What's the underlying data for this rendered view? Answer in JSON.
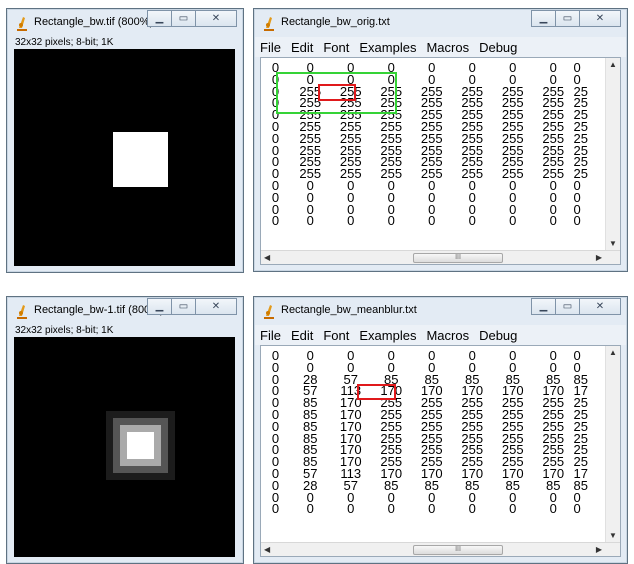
{
  "windows": {
    "img1": {
      "title": "Rectangle_bw.tif (800%)",
      "info": "32x32 pixels; 8-bit; 1K"
    },
    "txt1": {
      "title": "Rectangle_bw_orig.txt",
      "menu": [
        "File",
        "Edit",
        "Font",
        "Examples",
        "Macros",
        "Debug"
      ],
      "rows": [
        [
          "0",
          "0",
          "0",
          "0",
          "0",
          "0",
          "0",
          "0"
        ],
        [
          "0",
          "0",
          "0",
          "0",
          "0",
          "0",
          "0",
          "0"
        ],
        [
          "0",
          "255",
          "255",
          "255",
          "255",
          "255",
          "255",
          "255"
        ],
        [
          "0",
          "255",
          "255",
          "255",
          "255",
          "255",
          "255",
          "255"
        ],
        [
          "0",
          "255",
          "255",
          "255",
          "255",
          "255",
          "255",
          "255"
        ],
        [
          "0",
          "255",
          "255",
          "255",
          "255",
          "255",
          "255",
          "255"
        ],
        [
          "0",
          "255",
          "255",
          "255",
          "255",
          "255",
          "255",
          "255"
        ],
        [
          "0",
          "255",
          "255",
          "255",
          "255",
          "255",
          "255",
          "255"
        ],
        [
          "0",
          "255",
          "255",
          "255",
          "255",
          "255",
          "255",
          "255"
        ],
        [
          "0",
          "255",
          "255",
          "255",
          "255",
          "255",
          "255",
          "255"
        ],
        [
          "0",
          "0",
          "0",
          "0",
          "0",
          "0",
          "0",
          "0"
        ],
        [
          "0",
          "0",
          "0",
          "0",
          "0",
          "0",
          "0",
          "0"
        ],
        [
          "0",
          "0",
          "0",
          "0",
          "0",
          "0",
          "0",
          "0"
        ],
        [
          "0",
          "0",
          "0",
          "0",
          "0",
          "0",
          "0",
          "0"
        ]
      ],
      "partial_col": [
        "0",
        "0",
        "25",
        "25",
        "25",
        "25",
        "25",
        "25",
        "25",
        "25",
        "0",
        "0",
        "0",
        "0"
      ],
      "hscroll_grip": "III"
    },
    "img2": {
      "title": "Rectangle_bw-1.tif (800%)",
      "info": "32x32 pixels; 8-bit; 1K"
    },
    "txt2": {
      "title": "Rectangle_bw_meanblur.txt",
      "menu": [
        "File",
        "Edit",
        "Font",
        "Examples",
        "Macros",
        "Debug"
      ],
      "rows": [
        [
          "0",
          "0",
          "0",
          "0",
          "0",
          "0",
          "0",
          "0"
        ],
        [
          "0",
          "0",
          "0",
          "0",
          "0",
          "0",
          "0",
          "0"
        ],
        [
          "0",
          "28",
          "57",
          "85",
          "85",
          "85",
          "85",
          "85"
        ],
        [
          "0",
          "57",
          "113",
          "170",
          "170",
          "170",
          "170",
          "170"
        ],
        [
          "0",
          "85",
          "170",
          "255",
          "255",
          "255",
          "255",
          "255"
        ],
        [
          "0",
          "85",
          "170",
          "255",
          "255",
          "255",
          "255",
          "255"
        ],
        [
          "0",
          "85",
          "170",
          "255",
          "255",
          "255",
          "255",
          "255"
        ],
        [
          "0",
          "85",
          "170",
          "255",
          "255",
          "255",
          "255",
          "255"
        ],
        [
          "0",
          "85",
          "170",
          "255",
          "255",
          "255",
          "255",
          "255"
        ],
        [
          "0",
          "85",
          "170",
          "255",
          "255",
          "255",
          "255",
          "255"
        ],
        [
          "0",
          "57",
          "113",
          "170",
          "170",
          "170",
          "170",
          "170"
        ],
        [
          "0",
          "28",
          "57",
          "85",
          "85",
          "85",
          "85",
          "85"
        ],
        [
          "0",
          "0",
          "0",
          "0",
          "0",
          "0",
          "0",
          "0"
        ],
        [
          "0",
          "0",
          "0",
          "0",
          "0",
          "0",
          "0",
          "0"
        ]
      ],
      "partial_col": [
        "0",
        "0",
        "85",
        "17",
        "25",
        "25",
        "25",
        "25",
        "25",
        "25",
        "17",
        "85",
        "0",
        "0"
      ],
      "hscroll_grip": "III"
    }
  },
  "colors": {
    "highlight_red": "#e0191b",
    "highlight_green": "#35d336"
  },
  "icons": [
    "imagej-icon",
    "minimize-icon",
    "maximize-icon",
    "close-icon",
    "scroll-up-icon",
    "scroll-down-icon",
    "scroll-left-icon",
    "scroll-right-icon"
  ]
}
